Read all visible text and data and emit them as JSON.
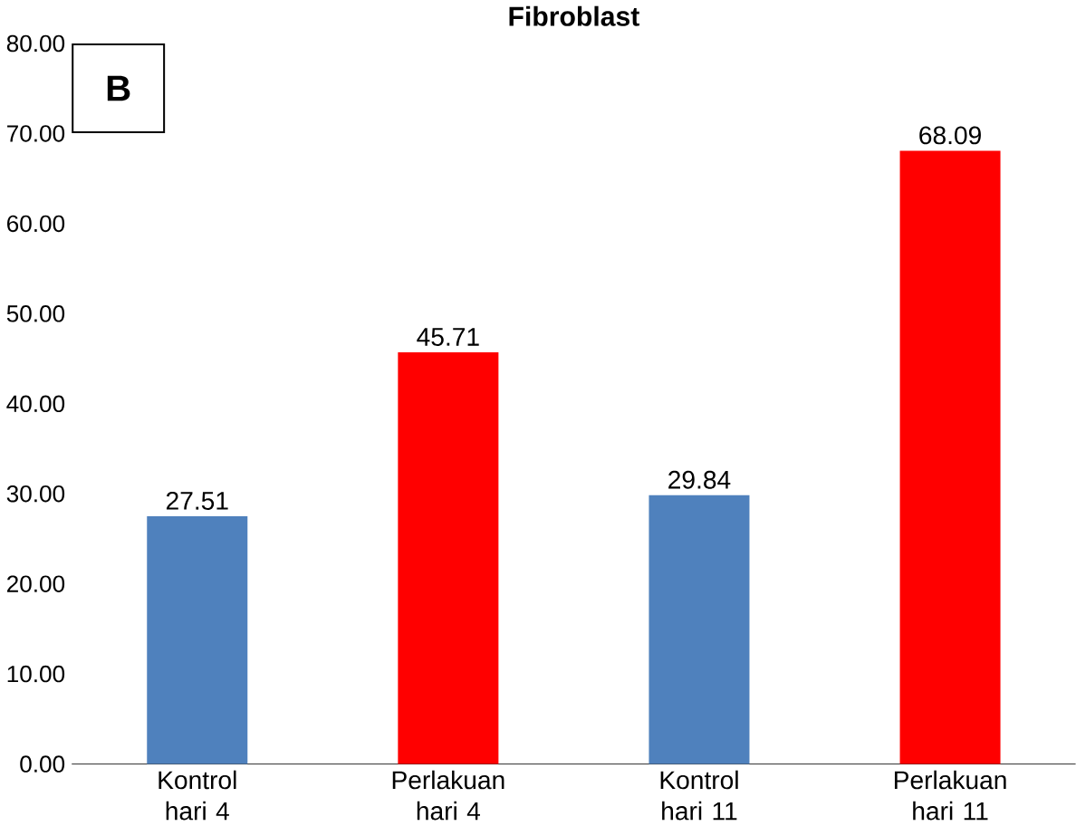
{
  "chart_data": {
    "type": "bar",
    "title": "Fibroblast",
    "annotations": [
      "B"
    ],
    "categories": [
      "Kontrol hari 4",
      "Perlakuan hari 4",
      "Kontrol hari 11",
      "Perlakuan hari 11"
    ],
    "values": [
      27.51,
      45.71,
      29.84,
      68.09
    ],
    "colors": [
      "#4f81bd",
      "#ff0000",
      "#4f81bd",
      "#ff0000"
    ],
    "value_labels": [
      "27.51",
      "45.71",
      "29.84",
      "68.09"
    ],
    "ylim": [
      0,
      80
    ],
    "yticks": [
      {
        "value": 0,
        "label": "0.00"
      },
      {
        "value": 10,
        "label": "10.00"
      },
      {
        "value": 20,
        "label": "20.00"
      },
      {
        "value": 30,
        "label": "30.00"
      },
      {
        "value": 40,
        "label": "40.00"
      },
      {
        "value": 50,
        "label": "50.00"
      },
      {
        "value": 60,
        "label": "60.00"
      },
      {
        "value": 70,
        "label": "70.00"
      },
      {
        "value": 80,
        "label": "80.00"
      }
    ],
    "grid": false
  }
}
